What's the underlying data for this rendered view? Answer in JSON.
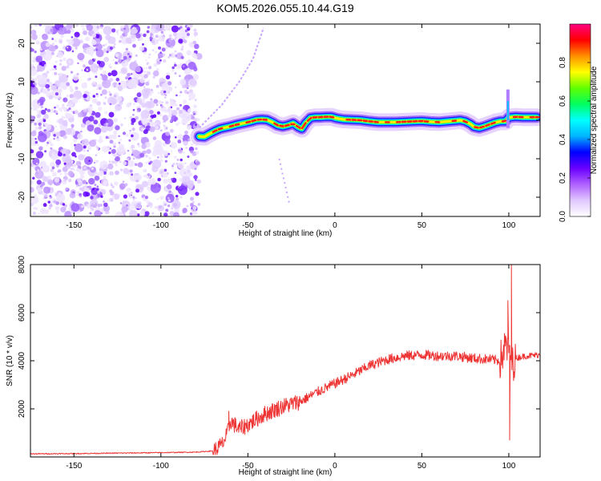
{
  "title": "KOM5.2026.055.10.44.G19",
  "chart_data": [
    {
      "type": "heatmap",
      "name": "spectrogram",
      "xlabel": "Height of straight line (km)",
      "ylabel": "Frequency (Hz)",
      "xlim": [
        -175,
        118
      ],
      "ylim": [
        -25,
        25
      ],
      "xticks": [
        -150,
        -100,
        -50,
        0,
        50,
        100
      ],
      "yticks": [
        -20,
        -10,
        0,
        10,
        20
      ],
      "colorbar": {
        "label": "Normalized spectral amplitude",
        "range": [
          0,
          1
        ],
        "ticks": [
          "0.0",
          "0.2",
          "0.4",
          "0.6",
          "0.8"
        ],
        "colors": [
          "#ffffff",
          "#e0c8ff",
          "#b060ff",
          "#6a00ff",
          "#0000ff",
          "#00b4ff",
          "#00ffff",
          "#00ff60",
          "#60ff00",
          "#ffff00",
          "#ff9000",
          "#ff0000",
          "#ff0080"
        ]
      },
      "noise_region_x": [
        -175,
        -78
      ],
      "ridge": {
        "x": [
          -78,
          -75,
          -72,
          -69,
          -66,
          -63,
          -60,
          -57,
          -54,
          -51,
          -48,
          -45,
          -42,
          -39,
          -36,
          -33,
          -30,
          -27,
          -24,
          -21,
          -19,
          -17,
          -14,
          -11,
          -8,
          -5,
          -2,
          1,
          5,
          10,
          15,
          20,
          25,
          30,
          35,
          40,
          45,
          50,
          55,
          60,
          65,
          70,
          72,
          75,
          78,
          80,
          83,
          86,
          89,
          92,
          95,
          98,
          100,
          104,
          108,
          112,
          116
        ],
        "freq": [
          -4.2,
          -4.3,
          -3.5,
          -2.8,
          -2.2,
          -1.9,
          -1.6,
          -1.2,
          -0.9,
          -0.6,
          -0.3,
          0.1,
          0.2,
          0.1,
          -0.5,
          -1.3,
          -1.6,
          -1.3,
          -0.8,
          -1.8,
          -2.2,
          -0.8,
          0.6,
          0.8,
          0.8,
          0.9,
          0.9,
          0.5,
          0.2,
          0.1,
          0.0,
          -0.3,
          -0.5,
          -0.5,
          -0.5,
          -0.4,
          -0.3,
          -0.2,
          -0.4,
          -0.5,
          -0.3,
          -0.1,
          0.0,
          -0.3,
          -1.0,
          -1.7,
          -2.0,
          -1.6,
          -1.1,
          -0.6,
          -0.3,
          -0.3,
          0.7,
          0.9,
          0.8,
          0.8,
          0.8
        ]
      },
      "harmonic_arc": {
        "x": [
          -78,
          -65,
          -55,
          -47,
          -41
        ],
        "freq": [
          -2,
          4,
          10,
          16,
          24
        ]
      },
      "harmonic_arc_low": {
        "x": [
          -32,
          -30,
          -28,
          -26
        ],
        "freq": [
          -10,
          -14,
          -18,
          -22
        ]
      }
    },
    {
      "type": "line",
      "name": "snr",
      "xlabel": "Height of straight line (km)",
      "ylabel": "SNR (10 * v/v)",
      "xlim": [
        -175,
        118
      ],
      "ylim": [
        0,
        8000
      ],
      "xticks": [
        -150,
        -100,
        -50,
        0,
        50,
        100
      ],
      "yticks": [
        2000,
        4000,
        6000,
        8000
      ],
      "color": "#ee3333",
      "envelope": {
        "x": [
          -175,
          -150,
          -100,
          -80,
          -70,
          -65,
          -62,
          -60,
          -55,
          -50,
          -40,
          -30,
          -20,
          -10,
          0,
          10,
          20,
          30,
          40,
          50,
          60,
          70,
          80,
          90,
          95,
          98,
          100,
          102,
          104,
          106,
          110,
          118
        ],
        "snr": [
          130,
          140,
          180,
          200,
          250,
          500,
          900,
          1500,
          1150,
          1350,
          1800,
          2100,
          2300,
          2700,
          3050,
          3400,
          3800,
          4050,
          4200,
          4250,
          4200,
          4200,
          4100,
          4050,
          4000,
          4600,
          4500,
          3900,
          4100,
          4150,
          4200,
          4250
        ]
      },
      "spikes": [
        {
          "x": -61,
          "snr": 1900
        },
        {
          "x": 99.5,
          "snr": 6500
        },
        {
          "x": 101.5,
          "snr": 8000
        },
        {
          "x": 100.5,
          "snr": 700
        }
      ]
    }
  ]
}
